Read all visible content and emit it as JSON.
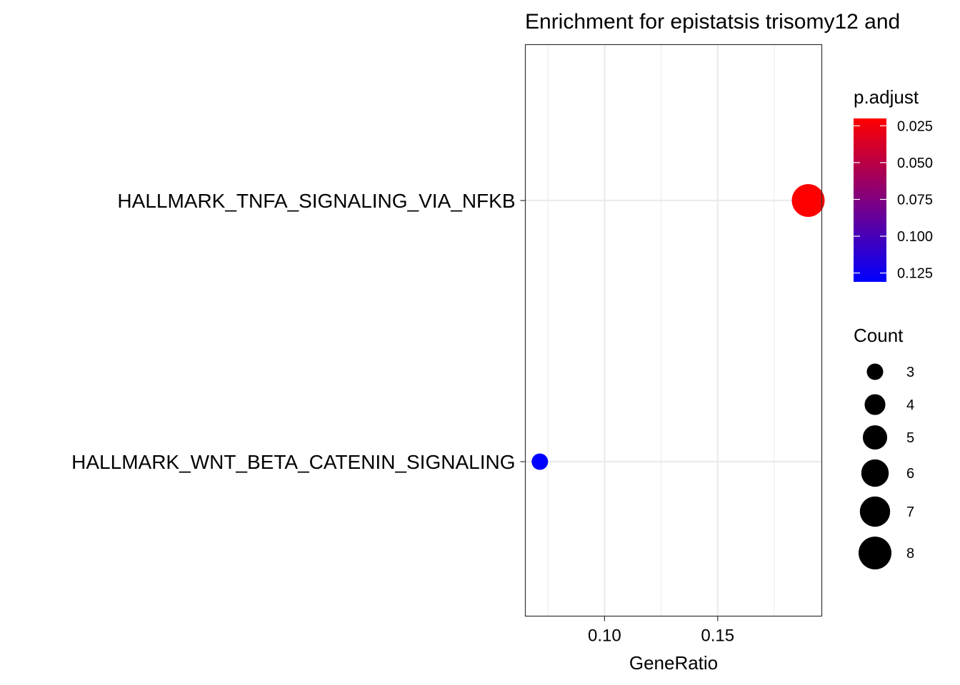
{
  "chart_data": {
    "type": "scatter",
    "title": "Enrichment for epistatsis trisomy12 and",
    "xlabel": "GeneRatio",
    "ylabel": "",
    "xlim": [
      0.065,
      0.196
    ],
    "x_ticks": [
      0.1,
      0.15
    ],
    "x_tick_labels": [
      "0.10",
      "0.15"
    ],
    "x_minor_ticks": [
      0.075,
      0.125,
      0.175
    ],
    "categories": [
      "HALLMARK_TNFA_SIGNALING_VIA_NFKB",
      "HALLMARK_WNT_BETA_CATENIN_SIGNALING"
    ],
    "points": [
      {
        "term": "HALLMARK_TNFA_SIGNALING_VIA_NFKB",
        "gene_ratio": 0.19,
        "count": 8,
        "p_adjust": 0.02,
        "color": "#FF0000"
      },
      {
        "term": "HALLMARK_WNT_BETA_CATENIN_SIGNALING",
        "gene_ratio": 0.0714,
        "count": 3,
        "p_adjust": 0.131,
        "color": "#0000FF"
      }
    ],
    "grid": true,
    "legend_position": "right",
    "color_legend": {
      "title": "p.adjust",
      "low_color": "#FF0000",
      "high_color": "#0000FF",
      "range": [
        0.02,
        0.131
      ],
      "breaks": [
        0.025,
        0.05,
        0.075,
        0.1,
        0.125
      ],
      "labels": [
        "0.025",
        "0.050",
        "0.075",
        "0.100",
        "0.125"
      ]
    },
    "size_legend": {
      "title": "Count",
      "values": [
        3,
        4,
        5,
        6,
        7,
        8
      ],
      "labels": [
        "3",
        "4",
        "5",
        "6",
        "7",
        "8"
      ]
    }
  }
}
